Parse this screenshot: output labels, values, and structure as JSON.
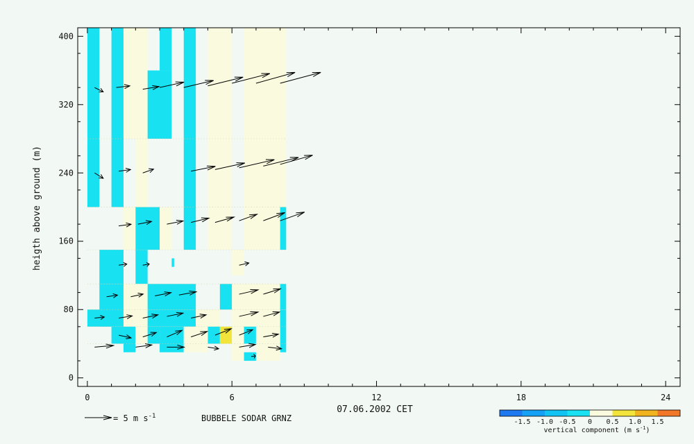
{
  "chart_data": {
    "type": "heatmap",
    "title": "",
    "xlabel": "07.06.2002 CET",
    "ylabel": "heigth above ground (m)",
    "xlim": [
      -0.4,
      24.6
    ],
    "ylim": [
      -10,
      410
    ],
    "x_ticks": [
      0,
      6,
      12,
      18,
      24
    ],
    "y_ticks": [
      0,
      80,
      160,
      240,
      320,
      400
    ],
    "station_label": "BUBBELE SODAR GRNZ",
    "wind_scale": {
      "arrow_speed": 5,
      "label": "= 5 m s",
      "exponent": "-1"
    },
    "colorbar": {
      "label": "vertical component (m s",
      "label_exponent": "-1",
      "label_close": ")",
      "bounds": [
        -2.0,
        -1.5,
        -1.0,
        -0.5,
        0,
        0.5,
        1.0,
        1.5,
        2.0
      ],
      "tick_labels": [
        "-1.5",
        "-1.0",
        "-0.5",
        "0",
        "0.5",
        "1.0",
        "1.5"
      ],
      "tick_values": [
        -1.5,
        -1.0,
        -0.5,
        0,
        0.5,
        1.0,
        1.5
      ],
      "colors": [
        "#1e78f0",
        "#14a0f4",
        "#12c4f4",
        "#18e2f2",
        "#fafade",
        "#f2e43a",
        "#f2b41e",
        "#f07828"
      ]
    },
    "cells": [
      {
        "x": [
          0,
          0.5
        ],
        "y": [
          200,
          410
        ],
        "w": -0.3
      },
      {
        "x": [
          1,
          1.5
        ],
        "y": [
          200,
          410
        ],
        "w": -0.3
      },
      {
        "x": [
          1.5,
          2.5
        ],
        "y": [
          280,
          410
        ],
        "w": 0.1
      },
      {
        "x": [
          1.5,
          2.5
        ],
        "y": [
          150,
          200
        ],
        "w": 0.1
      },
      {
        "x": [
          2,
          2.5
        ],
        "y": [
          200,
          280
        ],
        "w": 0.1
      },
      {
        "x": [
          3,
          3.5
        ],
        "y": [
          360,
          410
        ],
        "w": -0.3
      },
      {
        "x": [
          2.5,
          3.5
        ],
        "y": [
          280,
          360
        ],
        "w": -0.3
      },
      {
        "x": [
          4,
          4.5
        ],
        "y": [
          150,
          410
        ],
        "w": -0.3
      },
      {
        "x": [
          5,
          6
        ],
        "y": [
          150,
          410
        ],
        "w": 0.1
      },
      {
        "x": [
          6.5,
          8.25
        ],
        "y": [
          150,
          410
        ],
        "w": 0.1
      },
      {
        "x": [
          2,
          3
        ],
        "y": [
          150,
          200
        ],
        "w": -0.3
      },
      {
        "x": [
          3,
          3.5
        ],
        "y": [
          150,
          200
        ],
        "w": 0.1
      },
      {
        "x": [
          8,
          8.25
        ],
        "y": [
          150,
          200
        ],
        "w": -0.3
      },
      {
        "x": [
          0.5,
          1.5
        ],
        "y": [
          110,
          150
        ],
        "w": -0.3
      },
      {
        "x": [
          2,
          2.5
        ],
        "y": [
          110,
          150
        ],
        "w": -0.3
      },
      {
        "x": [
          3.5,
          3.6
        ],
        "y": [
          130,
          140
        ],
        "w": -0.3
      },
      {
        "x": [
          6,
          6.5
        ],
        "y": [
          120,
          150
        ],
        "w": 0.1
      },
      {
        "x": [
          0.5,
          1.5
        ],
        "y": [
          60,
          110
        ],
        "w": -0.3
      },
      {
        "x": [
          1.5,
          2.5
        ],
        "y": [
          60,
          110
        ],
        "w": 0.1
      },
      {
        "x": [
          2.5,
          4.5
        ],
        "y": [
          80,
          110
        ],
        "w": -0.3
      },
      {
        "x": [
          5.5,
          6
        ],
        "y": [
          80,
          110
        ],
        "w": -0.3
      },
      {
        "x": [
          6,
          8
        ],
        "y": [
          60,
          110
        ],
        "w": 0.1
      },
      {
        "x": [
          8,
          8.25
        ],
        "y": [
          80,
          110
        ],
        "w": -0.3
      },
      {
        "x": [
          0,
          1
        ],
        "y": [
          60,
          80
        ],
        "w": -0.3
      },
      {
        "x": [
          2.5,
          4.5
        ],
        "y": [
          60,
          80
        ],
        "w": -0.3
      },
      {
        "x": [
          4.5,
          5.5
        ],
        "y": [
          60,
          80
        ],
        "w": 0.1
      },
      {
        "x": [
          8,
          8.25
        ],
        "y": [
          30,
          80
        ],
        "w": -0.3
      },
      {
        "x": [
          1,
          1.5
        ],
        "y": [
          40,
          60
        ],
        "w": -0.3
      },
      {
        "x": [
          1.5,
          2
        ],
        "y": [
          30,
          60
        ],
        "w": -0.3
      },
      {
        "x": [
          2,
          2.5
        ],
        "y": [
          40,
          60
        ],
        "w": 0.1
      },
      {
        "x": [
          2.5,
          3
        ],
        "y": [
          40,
          60
        ],
        "w": -0.3
      },
      {
        "x": [
          3,
          4
        ],
        "y": [
          30,
          60
        ],
        "w": -0.3
      },
      {
        "x": [
          4,
          5
        ],
        "y": [
          30,
          60
        ],
        "w": 0.1
      },
      {
        "x": [
          5,
          5.5
        ],
        "y": [
          40,
          60
        ],
        "w": -0.3
      },
      {
        "x": [
          5.5,
          6
        ],
        "y": [
          40,
          60
        ],
        "w": 0.7
      },
      {
        "x": [
          6,
          6.5
        ],
        "y": [
          20,
          60
        ],
        "w": 0.1
      },
      {
        "x": [
          6.5,
          7
        ],
        "y": [
          40,
          60
        ],
        "w": -0.3
      },
      {
        "x": [
          7,
          8
        ],
        "y": [
          20,
          60
        ],
        "w": 0.1
      },
      {
        "x": [
          6.5,
          7
        ],
        "y": [
          20,
          30
        ],
        "w": -0.3
      }
    ],
    "wind_vectors": [
      {
        "t": 0.3,
        "h": 340,
        "u": 1.6,
        "v": -0.8
      },
      {
        "t": 1.2,
        "h": 340,
        "u": 2.5,
        "v": 0.3
      },
      {
        "t": 2.3,
        "h": 338,
        "u": 3.0,
        "v": 0.5
      },
      {
        "t": 3.0,
        "h": 340,
        "u": 4.5,
        "v": 1.0
      },
      {
        "t": 4.0,
        "h": 340,
        "u": 5.5,
        "v": 1.3
      },
      {
        "t": 5.0,
        "h": 342,
        "u": 6.5,
        "v": 1.6
      },
      {
        "t": 6.0,
        "h": 345,
        "u": 7.0,
        "v": 1.8
      },
      {
        "t": 7.0,
        "h": 345,
        "u": 7.2,
        "v": 2.0
      },
      {
        "t": 8.0,
        "h": 345,
        "u": 7.5,
        "v": 2.0
      },
      {
        "t": 0.3,
        "h": 240,
        "u": 1.6,
        "v": -1.0
      },
      {
        "t": 1.3,
        "h": 242,
        "u": 2.2,
        "v": 0.3
      },
      {
        "t": 2.3,
        "h": 240,
        "u": 2.0,
        "v": 0.7
      },
      {
        "t": 4.3,
        "h": 242,
        "u": 4.5,
        "v": 0.9
      },
      {
        "t": 5.3,
        "h": 244,
        "u": 5.5,
        "v": 1.2
      },
      {
        "t": 6.3,
        "h": 246,
        "u": 6.5,
        "v": 1.5
      },
      {
        "t": 7.3,
        "h": 248,
        "u": 6.5,
        "v": 1.6
      },
      {
        "t": 8.0,
        "h": 250,
        "u": 6.0,
        "v": 1.7
      },
      {
        "t": 1.3,
        "h": 178,
        "u": 2.3,
        "v": 0.3
      },
      {
        "t": 2.1,
        "h": 180,
        "u": 2.5,
        "v": 0.5
      },
      {
        "t": 3.3,
        "h": 180,
        "u": 3.0,
        "v": 0.6
      },
      {
        "t": 4.3,
        "h": 182,
        "u": 3.3,
        "v": 0.8
      },
      {
        "t": 5.3,
        "h": 182,
        "u": 3.5,
        "v": 1.0
      },
      {
        "t": 6.3,
        "h": 184,
        "u": 3.3,
        "v": 1.2
      },
      {
        "t": 7.3,
        "h": 184,
        "u": 4.0,
        "v": 1.5
      },
      {
        "t": 8.0,
        "h": 184,
        "u": 4.5,
        "v": 1.6
      },
      {
        "t": 1.3,
        "h": 132,
        "u": 1.5,
        "v": 0.2
      },
      {
        "t": 2.3,
        "h": 132,
        "u": 1.2,
        "v": 0.2
      },
      {
        "t": 6.3,
        "h": 132,
        "u": 1.8,
        "v": 0.4
      },
      {
        "t": 0.8,
        "h": 95,
        "u": 2.0,
        "v": 0.3
      },
      {
        "t": 1.8,
        "h": 95,
        "u": 2.3,
        "v": 0.5
      },
      {
        "t": 2.8,
        "h": 96,
        "u": 3.0,
        "v": 0.6
      },
      {
        "t": 3.8,
        "h": 97,
        "u": 3.2,
        "v": 0.6
      },
      {
        "t": 6.3,
        "h": 98,
        "u": 3.5,
        "v": 0.8
      },
      {
        "t": 7.3,
        "h": 98,
        "u": 3.2,
        "v": 1.0
      },
      {
        "t": 0.3,
        "h": 70,
        "u": 1.8,
        "v": 0.2
      },
      {
        "t": 1.3,
        "h": 70,
        "u": 2.5,
        "v": 0.4
      },
      {
        "t": 2.3,
        "h": 70,
        "u": 2.8,
        "v": 0.6
      },
      {
        "t": 3.3,
        "h": 72,
        "u": 3.0,
        "v": 0.6
      },
      {
        "t": 4.3,
        "h": 70,
        "u": 2.8,
        "v": 0.6
      },
      {
        "t": 6.3,
        "h": 72,
        "u": 3.5,
        "v": 0.8
      },
      {
        "t": 7.3,
        "h": 72,
        "u": 3.0,
        "v": 0.8
      },
      {
        "t": 1.3,
        "h": 50,
        "u": 2.3,
        "v": -0.5
      },
      {
        "t": 2.3,
        "h": 48,
        "u": 2.5,
        "v": 0.8
      },
      {
        "t": 3.3,
        "h": 48,
        "u": 2.8,
        "v": 1.2
      },
      {
        "t": 4.3,
        "h": 48,
        "u": 3.0,
        "v": 1.0
      },
      {
        "t": 5.3,
        "h": 50,
        "u": 3.0,
        "v": 1.2
      },
      {
        "t": 6.3,
        "h": 50,
        "u": 2.5,
        "v": 1.0
      },
      {
        "t": 7.3,
        "h": 48,
        "u": 2.8,
        "v": 0.5
      },
      {
        "t": 0.3,
        "h": 36,
        "u": 3.5,
        "v": 0.3
      },
      {
        "t": 2.0,
        "h": 36,
        "u": 3.0,
        "v": 0.4
      },
      {
        "t": 3.3,
        "h": 36,
        "u": 3.2,
        "v": 0.0
      },
      {
        "t": 5.0,
        "h": 36,
        "u": 2.0,
        "v": -0.3
      },
      {
        "t": 6.3,
        "h": 36,
        "u": 3.0,
        "v": 0.5
      },
      {
        "t": 7.5,
        "h": 36,
        "u": 2.5,
        "v": -0.3
      },
      {
        "t": 6.8,
        "h": 25,
        "u": 0.8,
        "v": 0.1
      }
    ]
  }
}
